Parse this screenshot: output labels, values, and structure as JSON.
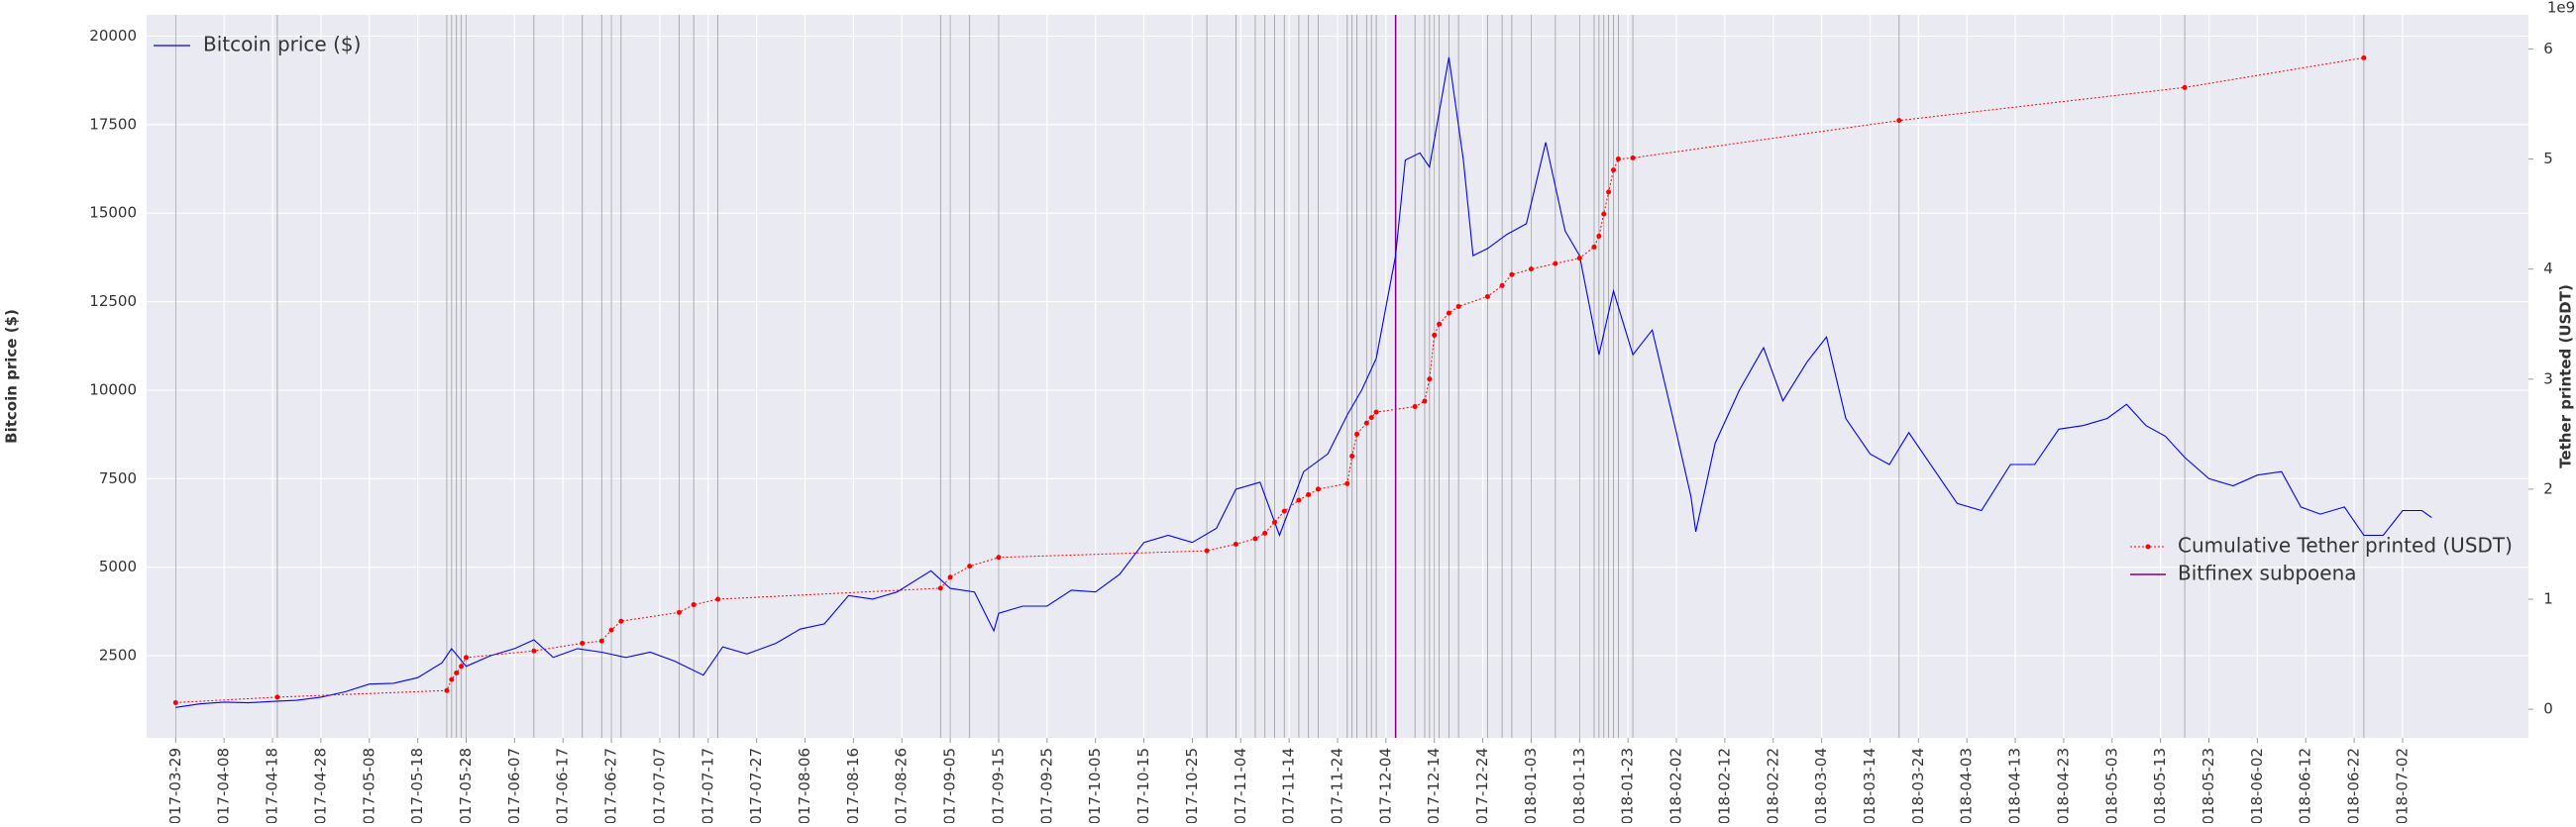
{
  "chart_data": {
    "type": "line",
    "ylabel": "Bitcoin price ($)",
    "y2label": "Tether printed (USDT)",
    "y2_offset_label": "1e9",
    "xlim": [
      "2017-03-23",
      "2018-07-28"
    ],
    "ylim": [
      180,
      20600
    ],
    "y2lim": [
      -0.26,
      6.31
    ],
    "yticks": [
      2500,
      5000,
      7500,
      10000,
      12500,
      15000,
      17500,
      20000
    ],
    "y2ticks": [
      0,
      1,
      2,
      3,
      4,
      5,
      6
    ],
    "xticks": [
      "2017-03-29",
      "2017-04-08",
      "2017-04-18",
      "2017-04-28",
      "2017-05-08",
      "2017-05-18",
      "2017-05-28",
      "2017-06-07",
      "2017-06-17",
      "2017-06-27",
      "2017-07-07",
      "2017-07-17",
      "2017-07-27",
      "2017-08-06",
      "2017-08-16",
      "2017-08-26",
      "2017-09-05",
      "2017-09-15",
      "2017-09-25",
      "2017-10-05",
      "2017-10-15",
      "2017-10-25",
      "2017-11-04",
      "2017-11-14",
      "2017-11-24",
      "2017-12-04",
      "2017-12-14",
      "2017-12-24",
      "2018-01-03",
      "2018-01-13",
      "2018-01-23",
      "2018-02-02",
      "2018-02-12",
      "2018-02-22",
      "2018-03-04",
      "2018-03-14",
      "2018-03-24",
      "2018-04-03",
      "2018-04-13",
      "2018-04-23",
      "2018-05-03",
      "2018-05-13",
      "2018-05-23",
      "2018-06-02",
      "2018-06-12",
      "2018-06-22",
      "2018-07-02"
    ],
    "grid": true,
    "series": [
      {
        "name": "Bitcoin price ($)",
        "color": "#0000ff",
        "legend": "upper left",
        "x": [
          "2017-03-29",
          "2017-04-03",
          "2017-04-08",
          "2017-04-13",
          "2017-04-18",
          "2017-04-23",
          "2017-04-28",
          "2017-05-03",
          "2017-05-08",
          "2017-05-13",
          "2017-05-18",
          "2017-05-23",
          "2017-05-25",
          "2017-05-28",
          "2017-06-02",
          "2017-06-07",
          "2017-06-11",
          "2017-06-15",
          "2017-06-20",
          "2017-06-25",
          "2017-06-30",
          "2017-07-05",
          "2017-07-10",
          "2017-07-16",
          "2017-07-20",
          "2017-07-25",
          "2017-07-31",
          "2017-08-05",
          "2017-08-10",
          "2017-08-15",
          "2017-08-20",
          "2017-08-25",
          "2017-09-01",
          "2017-09-05",
          "2017-09-10",
          "2017-09-14",
          "2017-09-15",
          "2017-09-20",
          "2017-09-25",
          "2017-09-30",
          "2017-10-05",
          "2017-10-10",
          "2017-10-15",
          "2017-10-20",
          "2017-10-25",
          "2017-10-30",
          "2017-11-03",
          "2017-11-08",
          "2017-11-12",
          "2017-11-17",
          "2017-11-22",
          "2017-11-26",
          "2017-11-29",
          "2017-12-02",
          "2017-12-06",
          "2017-12-08",
          "2017-12-11",
          "2017-12-13",
          "2017-12-17",
          "2017-12-20",
          "2017-12-22",
          "2017-12-25",
          "2017-12-29",
          "2018-01-02",
          "2018-01-06",
          "2018-01-10",
          "2018-01-13",
          "2018-01-17",
          "2018-01-20",
          "2018-01-24",
          "2018-01-28",
          "2018-02-02",
          "2018-02-05",
          "2018-02-06",
          "2018-02-10",
          "2018-02-15",
          "2018-02-20",
          "2018-02-24",
          "2018-03-01",
          "2018-03-05",
          "2018-03-09",
          "2018-03-14",
          "2018-03-18",
          "2018-03-22",
          "2018-03-27",
          "2018-04-01",
          "2018-04-06",
          "2018-04-12",
          "2018-04-17",
          "2018-04-22",
          "2018-04-27",
          "2018-05-02",
          "2018-05-06",
          "2018-05-10",
          "2018-05-14",
          "2018-05-18",
          "2018-05-23",
          "2018-05-28",
          "2018-06-02",
          "2018-06-07",
          "2018-06-11",
          "2018-06-15",
          "2018-06-20",
          "2018-06-24",
          "2018-06-28",
          "2018-07-02",
          "2018-07-06",
          "2018-07-08"
        ],
        "values": [
          1040,
          1140,
          1190,
          1170,
          1210,
          1240,
          1330,
          1480,
          1700,
          1720,
          1880,
          2300,
          2700,
          2200,
          2500,
          2700,
          2950,
          2450,
          2700,
          2600,
          2450,
          2600,
          2350,
          1950,
          2750,
          2550,
          2850,
          3250,
          3400,
          4200,
          4100,
          4300,
          4900,
          4400,
          4300,
          3200,
          3700,
          3900,
          3900,
          4350,
          4300,
          4800,
          5700,
          5900,
          5700,
          6100,
          7200,
          7400,
          5900,
          7700,
          8200,
          9300,
          10000,
          10900,
          13800,
          16500,
          16700,
          16300,
          19400,
          16500,
          13800,
          14000,
          14400,
          14700,
          17000,
          14500,
          13800,
          11000,
          12800,
          11000,
          11700,
          8800,
          7000,
          6000,
          8500,
          10000,
          11200,
          9700,
          10800,
          11500,
          9200,
          8200,
          7900,
          8800,
          7800,
          6800,
          6600,
          7900,
          7900,
          8900,
          9000,
          9200,
          9600,
          9000,
          8700,
          8100,
          7500,
          7300,
          7600,
          7700,
          6700,
          6500,
          6700,
          5900,
          5900,
          6600,
          6600,
          6400
        ]
      },
      {
        "name": "Cumulative Tether printed (USDT)",
        "color": "#ff0000",
        "axis": "y2",
        "legend": "lower right",
        "x": [
          "2017-03-29",
          "2017-04-19",
          "2017-05-24",
          "2017-05-25",
          "2017-05-26",
          "2017-05-27",
          "2017-05-28",
          "2017-06-11",
          "2017-06-21",
          "2017-06-25",
          "2017-06-27",
          "2017-06-29",
          "2017-07-11",
          "2017-07-14",
          "2017-07-19",
          "2017-09-03",
          "2017-09-05",
          "2017-09-09",
          "2017-09-15",
          "2017-10-28",
          "2017-11-03",
          "2017-11-07",
          "2017-11-09",
          "2017-11-11",
          "2017-11-13",
          "2017-11-16",
          "2017-11-18",
          "2017-11-20",
          "2017-11-26",
          "2017-11-27",
          "2017-11-28",
          "2017-11-30",
          "2017-12-01",
          "2017-12-02",
          "2017-12-10",
          "2017-12-12",
          "2017-12-13",
          "2017-12-14",
          "2017-12-15",
          "2017-12-17",
          "2017-12-19",
          "2017-12-25",
          "2017-12-28",
          "2017-12-30",
          "2018-01-03",
          "2018-01-08",
          "2018-01-13",
          "2018-01-16",
          "2018-01-17",
          "2018-01-18",
          "2018-01-19",
          "2018-01-20",
          "2018-01-21",
          "2018-01-24",
          "2018-03-20",
          "2018-05-18",
          "2018-06-24"
        ],
        "values": [
          0.06,
          0.11,
          0.17,
          0.27,
          0.33,
          0.39,
          0.47,
          0.53,
          0.6,
          0.62,
          0.72,
          0.8,
          0.88,
          0.95,
          1.0,
          1.1,
          1.2,
          1.3,
          1.38,
          1.44,
          1.5,
          1.55,
          1.6,
          1.7,
          1.8,
          1.9,
          1.95,
          2.0,
          2.05,
          2.3,
          2.5,
          2.6,
          2.65,
          2.7,
          2.75,
          2.8,
          3.0,
          3.4,
          3.5,
          3.6,
          3.66,
          3.75,
          3.85,
          3.95,
          4.0,
          4.05,
          4.1,
          4.2,
          4.3,
          4.5,
          4.7,
          4.9,
          5.0,
          5.01,
          5.35,
          5.65,
          5.92
        ]
      }
    ],
    "events": [
      {
        "name": "Bitfinex subpoena",
        "color": "#800080",
        "x": "2017-12-06"
      }
    ]
  }
}
